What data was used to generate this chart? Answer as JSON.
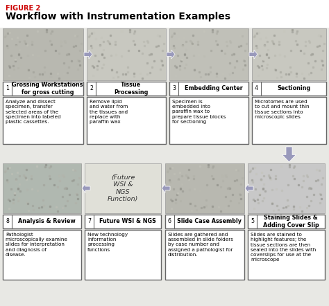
{
  "title": "Workflow with Instrumentation Examples",
  "figure_label": "FIGURE 2",
  "figure_label_color": "#cc0000",
  "bg_color": "#e8e8e4",
  "white": "#ffffff",
  "border_color": "#666666",
  "arrow_color": "#9999bb",
  "down_arrow_color": "#9999bb",
  "text_color": "#111111",
  "steps_row1": [
    {
      "num": "1",
      "name": "Grossing Workstations\nfor gross cutting",
      "desc": "Analyze and dissect\nspecimen, transfer\nselected areas of the\nspecimen into labeled\nplastic cassettes."
    },
    {
      "num": "2",
      "name": "Tissue\nProcessing",
      "desc": "Remove lipid\nand water from\nthe tissues and\nreplace with\nparaffin wax"
    },
    {
      "num": "3",
      "name": "Embedding Center",
      "desc": "Specimen is\nembedded into\nparaffin wax to\nprepare tissue blocks\nfor sectioning"
    },
    {
      "num": "4",
      "name": "Sectioning",
      "desc": "Microtomes are used\nto cut and mount thin\ntissue sections into\nmicroscopic slides"
    }
  ],
  "steps_row2": [
    {
      "num": "8",
      "name": "Analysis & Review",
      "desc": "Pathologist\nmicroscopically examine\nslides for interpretation\nand diagnosis of\ndisease."
    },
    {
      "num": "7",
      "name": "Future WSI & NGS",
      "desc": "New technology\ninformation\nprocessing\nfunctions"
    },
    {
      "num": "6",
      "name": "Slide Case Assembly",
      "desc": "Slides are gathered and\nassembled in slide folders\nby case number and\nassigned a pathologist for\ndistribution."
    },
    {
      "num": "5",
      "name": "Staining Slides &\nAdding Cover Slip",
      "desc": "Slides are stained to\nhighlight features; the\ntissue sections are then\nsealed into the slides with\ncoverslips for use at the\nmicroscope"
    }
  ],
  "future_wsi_text": "(Future\nWSI &\nNGS\nFunction)",
  "small_text_size": 5.2,
  "step_name_size": 5.8,
  "title_size": 10,
  "label_size": 7
}
